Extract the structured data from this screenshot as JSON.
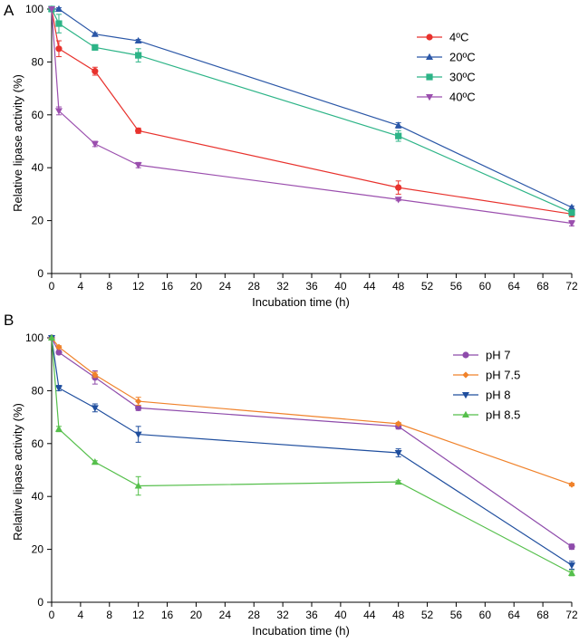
{
  "chart_data": [
    {
      "panel_label": "A",
      "type": "line",
      "xlabel": "Incubation time (h)",
      "ylabel": "Relative lipase activity (%)",
      "xlim": [
        0,
        72
      ],
      "ylim": [
        0,
        100
      ],
      "xticks": [
        0,
        4,
        8,
        12,
        16,
        20,
        24,
        28,
        32,
        36,
        40,
        44,
        48,
        52,
        56,
        60,
        64,
        68,
        72
      ],
      "yticks": [
        0,
        20,
        40,
        60,
        80,
        100
      ],
      "grid": false,
      "legend_position": "top-right",
      "x": [
        0,
        1,
        6,
        12,
        48,
        72
      ],
      "series": [
        {
          "name": "4ºC",
          "color": "#e8322d",
          "marker": "circle",
          "values": [
            100,
            85,
            76.5,
            54,
            32.5,
            22.5
          ],
          "errors": [
            0,
            3,
            1.5,
            1,
            2.5,
            1
          ]
        },
        {
          "name": "20ºC",
          "color": "#2b57a7",
          "marker": "triangle-up",
          "values": [
            100,
            100,
            90.5,
            88,
            56,
            25
          ],
          "errors": [
            0,
            0.5,
            0.5,
            0.5,
            1,
            0.5
          ]
        },
        {
          "name": "30ºC",
          "color": "#2db487",
          "marker": "square",
          "values": [
            100,
            94.5,
            85.5,
            82.5,
            52,
            23
          ],
          "errors": [
            0,
            3.5,
            1,
            2.5,
            2,
            1
          ]
        },
        {
          "name": "40ºC",
          "color": "#9b4fae",
          "marker": "triangle-down",
          "values": [
            100,
            61.5,
            49,
            41,
            28,
            19
          ],
          "errors": [
            0,
            1.5,
            1,
            1,
            0.5,
            1
          ]
        }
      ]
    },
    {
      "panel_label": "B",
      "type": "line",
      "xlabel": "Incubation time (h)",
      "ylabel": "Relative lipase activity (%)",
      "xlim": [
        0,
        72
      ],
      "ylim": [
        0,
        100
      ],
      "xticks": [
        0,
        4,
        8,
        12,
        16,
        20,
        24,
        28,
        32,
        36,
        40,
        44,
        48,
        52,
        56,
        60,
        64,
        68,
        72
      ],
      "yticks": [
        0,
        20,
        40,
        60,
        80,
        100
      ],
      "grid": false,
      "legend_position": "top-right",
      "x": [
        0,
        1,
        6,
        12,
        48,
        72
      ],
      "series": [
        {
          "name": "pH 7",
          "color": "#8e4bab",
          "marker": "circle",
          "values": [
            100,
            94.5,
            85,
            73.5,
            66.5,
            21
          ],
          "errors": [
            0,
            0.5,
            2.5,
            1,
            1,
            1
          ]
        },
        {
          "name": "pH 7.5",
          "color": "#f0822a",
          "marker": "diamond",
          "values": [
            100,
            96.5,
            86,
            76,
            67.5,
            44.5
          ],
          "errors": [
            0,
            0.5,
            1,
            1.5,
            0.5,
            0.5
          ]
        },
        {
          "name": "pH 8",
          "color": "#1f4e9e",
          "marker": "triangle-down",
          "values": [
            100,
            81,
            73.5,
            63.5,
            56.5,
            14
          ],
          "errors": [
            0,
            1,
            1.5,
            3,
            1.5,
            1.5
          ]
        },
        {
          "name": "pH 8.5",
          "color": "#55bf4b",
          "marker": "triangle-up",
          "values": [
            100,
            65.5,
            53,
            44,
            45.5,
            11
          ],
          "errors": [
            0,
            1,
            0.5,
            3.5,
            0.5,
            1
          ]
        }
      ]
    }
  ]
}
